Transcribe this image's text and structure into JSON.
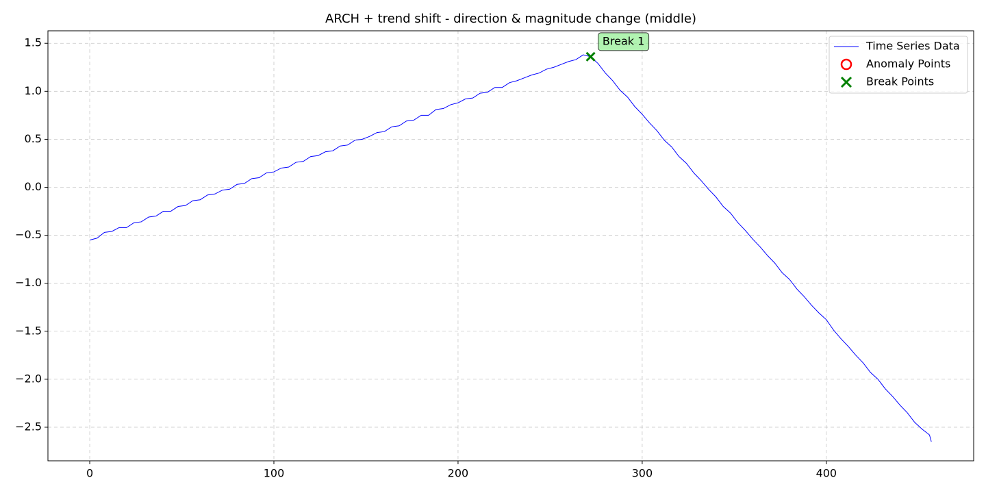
{
  "chart_data": {
    "type": "line",
    "title": "ARCH + trend shift - direction & magnitude change (middle)",
    "xlim": [
      -22.7,
      480
    ],
    "ylim": [
      -2.85,
      1.63
    ],
    "xticks": [
      0,
      100,
      200,
      300,
      400
    ],
    "yticks": [
      {
        "value": -2.5,
        "label": "−2.5"
      },
      {
        "value": -2,
        "label": "−2.0"
      },
      {
        "value": -1.5,
        "label": "−1.5"
      },
      {
        "value": -1,
        "label": "−1.0"
      },
      {
        "value": -0.5,
        "label": "−0.5"
      },
      {
        "value": 0,
        "label": "0.0"
      },
      0.5,
      {
        "value": 1,
        "label": "1.0"
      },
      1.5
    ],
    "grid": true,
    "legend": "upper right",
    "series": [
      {
        "name": "Time Series Data",
        "color": "#0000ff",
        "x": [
          0,
          4,
          8,
          12,
          16,
          20,
          24,
          28,
          32,
          36,
          40,
          44,
          48,
          52,
          56,
          60,
          64,
          68,
          72,
          76,
          80,
          84,
          88,
          92,
          96,
          100,
          104,
          108,
          112,
          116,
          120,
          124,
          128,
          132,
          136,
          140,
          144,
          148,
          152,
          156,
          160,
          164,
          168,
          172,
          176,
          180,
          184,
          188,
          192,
          196,
          200,
          204,
          208,
          212,
          216,
          220,
          224,
          228,
          232,
          236,
          240,
          244,
          248,
          252,
          256,
          260,
          264,
          268,
          272,
          276,
          280,
          284,
          288,
          292,
          296,
          300,
          304,
          308,
          312,
          316,
          320,
          324,
          328,
          332,
          336,
          340,
          344,
          348,
          352,
          356,
          360,
          364,
          368,
          372,
          376,
          380,
          384,
          388,
          392,
          396,
          400,
          404,
          408,
          412,
          416,
          420,
          424,
          428,
          432,
          436,
          440,
          444,
          448,
          452,
          456,
          457
        ],
        "values": [
          -0.55,
          -0.53,
          -0.47,
          -0.46,
          -0.42,
          -0.42,
          -0.37,
          -0.36,
          -0.31,
          -0.3,
          -0.25,
          -0.25,
          -0.2,
          -0.19,
          -0.14,
          -0.13,
          -0.08,
          -0.07,
          -0.03,
          -0.02,
          0.03,
          0.04,
          0.09,
          0.1,
          0.15,
          0.16,
          0.2,
          0.21,
          0.26,
          0.27,
          0.32,
          0.33,
          0.37,
          0.38,
          0.43,
          0.44,
          0.49,
          0.5,
          0.53,
          0.57,
          0.58,
          0.63,
          0.64,
          0.69,
          0.7,
          0.75,
          0.75,
          0.81,
          0.82,
          0.86,
          0.88,
          0.92,
          0.93,
          0.98,
          0.99,
          1.04,
          1.04,
          1.09,
          1.11,
          1.14,
          1.17,
          1.19,
          1.23,
          1.25,
          1.28,
          1.31,
          1.33,
          1.38,
          1.36,
          1.29,
          1.19,
          1.11,
          1.01,
          0.94,
          0.84,
          0.76,
          0.67,
          0.59,
          0.49,
          0.42,
          0.32,
          0.25,
          0.15,
          0.07,
          -0.02,
          -0.1,
          -0.2,
          -0.27,
          -0.37,
          -0.45,
          -0.54,
          -0.62,
          -0.71,
          -0.79,
          -0.89,
          -0.96,
          -1.06,
          -1.14,
          -1.23,
          -1.31,
          -1.38,
          -1.49,
          -1.58,
          -1.66,
          -1.75,
          -1.83,
          -1.93,
          -2.0,
          -2.1,
          -2.18,
          -2.27,
          -2.35,
          -2.45,
          -2.52,
          -2.58,
          -2.65
        ]
      },
      {
        "name": "Anomaly Points",
        "color": "#ff0000",
        "x": [],
        "values": []
      },
      {
        "name": "Break Points",
        "color": "#008000",
        "x": [
          272
        ],
        "values": [
          1.36
        ]
      }
    ],
    "annotations": [
      {
        "text": "Break 1"
      }
    ]
  }
}
